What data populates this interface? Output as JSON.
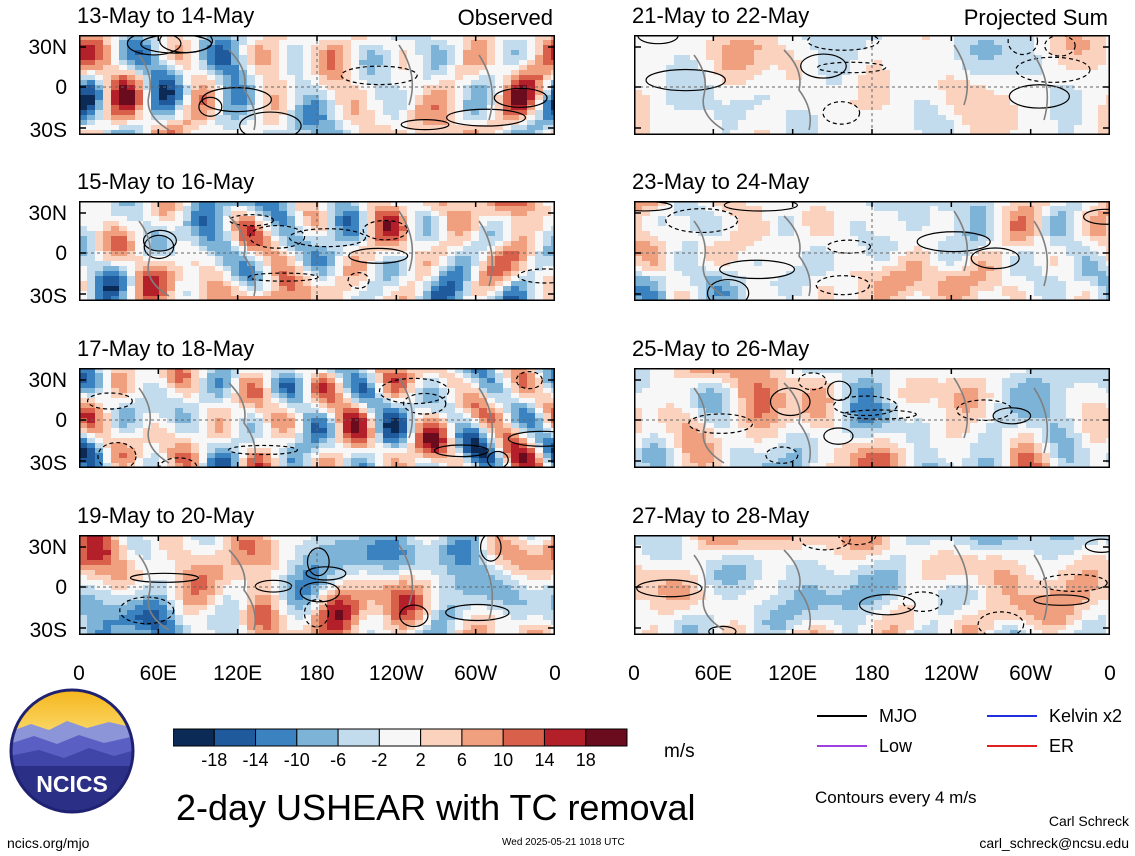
{
  "chart_data": {
    "type": "heatmap",
    "title": "2-day USHEAR with TC removal",
    "units": "m/s",
    "y_ticks": [
      "30N",
      "0",
      "30S"
    ],
    "x_ticks": [
      "0",
      "60E",
      "120E",
      "180",
      "120W",
      "60W",
      "0"
    ],
    "columns": [
      {
        "label": "Observed",
        "panels": [
          {
            "period": "13-May to 14-May",
            "seed": 11
          },
          {
            "period": "15-May to 16-May",
            "seed": 23
          },
          {
            "period": "17-May to 18-May",
            "seed": 37
          },
          {
            "period": "19-May to 20-May",
            "seed": 41
          }
        ]
      },
      {
        "label": "Projected Sum",
        "panels": [
          {
            "period": "21-May to 22-May",
            "seed": 53
          },
          {
            "period": "23-May to 24-May",
            "seed": 67
          },
          {
            "period": "25-May to 26-May",
            "seed": 71
          },
          {
            "period": "27-May to 28-May",
            "seed": 89
          }
        ]
      }
    ],
    "colorbar": {
      "levels": [
        -18,
        -14,
        -10,
        -6,
        -2,
        2,
        6,
        10,
        14,
        18
      ],
      "tick_labels": [
        "-18",
        "-14",
        "-10",
        "-6",
        "-2",
        "2",
        "6",
        "10",
        "14",
        "18"
      ],
      "colors": [
        "#0b2a55",
        "#1e5a9c",
        "#3b82c0",
        "#7eb3d8",
        "#c2dcee",
        "#f7f7f7",
        "#fbd2bd",
        "#f0a07f",
        "#d9604b",
        "#b3202a",
        "#6a0c1e"
      ]
    },
    "contour_note": "Contours every 4 m/s",
    "legend": [
      {
        "name": "MJO",
        "color": "#000000"
      },
      {
        "name": "Kelvin x2",
        "color": "#1f2fdc"
      },
      {
        "name": "Low",
        "color": "#a040e0"
      },
      {
        "name": "ER",
        "color": "#e02020"
      }
    ]
  },
  "branding": {
    "logo_text": "NCICS",
    "site": "ncics.org/mjo",
    "timestamp": "Wed 2025-05-21 1018 UTC",
    "author": "Carl Schreck",
    "email": "carl_schreck@ncsu.edu"
  }
}
